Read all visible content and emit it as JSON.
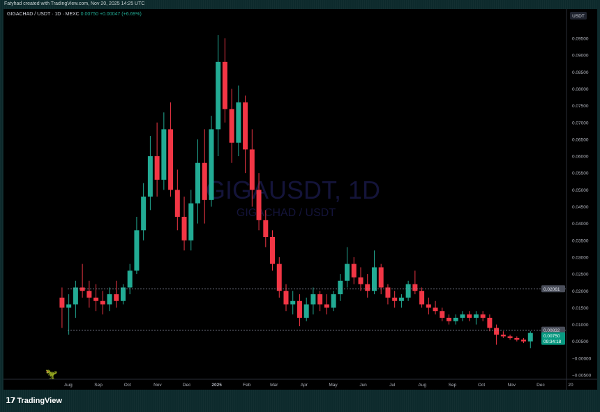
{
  "credit": "Fatyhad created with TradingView.com, Nov 20, 2025 14:25 UTC",
  "legend": {
    "symbol": "GIGACHAD / USDT · 1D · MEXC",
    "price": "0.00750",
    "change": "+0.00047 (+6.69%)"
  },
  "watermark": {
    "title": "GIGAUSDT, 1D",
    "subtitle": "GIGACHAD / USDT"
  },
  "currency_label": "USDT",
  "footer": {
    "brand": "TradingView"
  },
  "colors": {
    "up": "#22ab94",
    "down": "#f23645",
    "background": "#000000",
    "current_price": "#089981"
  },
  "chart_data": {
    "type": "candlestick",
    "interval": "1D",
    "ylim": [
      -0.005,
      0.1
    ],
    "y_ticks": [
      "0.09500",
      "0.09000",
      "0.08500",
      "0.08000",
      "0.07500",
      "0.07000",
      "0.06500",
      "0.06000",
      "0.05500",
      "0.05000",
      "0.04500",
      "0.04000",
      "0.03500",
      "0.03000",
      "0.02500",
      "0.02000",
      "0.01500",
      "0.01000",
      "0.00500",
      "−0.00000",
      "−0.00500"
    ],
    "y_tick_values": [
      0.095,
      0.09,
      0.085,
      0.08,
      0.075,
      0.07,
      0.065,
      0.06,
      0.055,
      0.05,
      0.045,
      0.04,
      0.035,
      0.03,
      0.025,
      0.02,
      0.015,
      0.01,
      0.005,
      0,
      -0.005
    ],
    "x_ticks": [
      {
        "label": "Aug",
        "date": "2024-08-01"
      },
      {
        "label": "Sep",
        "date": "2024-09-01"
      },
      {
        "label": "Oct",
        "date": "2024-10-01"
      },
      {
        "label": "Nov",
        "date": "2024-11-01"
      },
      {
        "label": "Dec",
        "date": "2024-12-01"
      },
      {
        "label": "2025",
        "date": "2025-01-01"
      },
      {
        "label": "Feb",
        "date": "2025-02-01"
      },
      {
        "label": "Mar",
        "date": "2025-03-01"
      },
      {
        "label": "Apr",
        "date": "2025-04-01"
      },
      {
        "label": "May",
        "date": "2025-05-01"
      },
      {
        "label": "Jun",
        "date": "2025-06-01"
      },
      {
        "label": "Jul",
        "date": "2025-07-01"
      },
      {
        "label": "Aug",
        "date": "2025-08-01"
      },
      {
        "label": "Sep",
        "date": "2025-09-01"
      },
      {
        "label": "Oct",
        "date": "2025-10-01"
      },
      {
        "label": "Nov",
        "date": "2025-11-01"
      },
      {
        "label": "Dec",
        "date": "2025-12-01"
      },
      {
        "label": "20",
        "date": "2026-01-01"
      }
    ],
    "horizontal_lines": [
      {
        "value": 0.02061,
        "label": "0.02061"
      },
      {
        "value": 0.00832,
        "label": "0.00832"
      }
    ],
    "current_price": {
      "value": 0.0075,
      "label": "0.00750",
      "countdown": "09:34:18"
    },
    "ohlc_columns": [
      "date",
      "open",
      "high",
      "low",
      "close"
    ],
    "ohlc": [
      [
        "2024-07-22",
        0.018,
        0.021,
        0.009,
        0.015
      ],
      [
        "2024-07-29",
        0.015,
        0.019,
        0.007,
        0.016
      ],
      [
        "2024-08-05",
        0.016,
        0.023,
        0.012,
        0.021
      ],
      [
        "2024-08-12",
        0.021,
        0.028,
        0.018,
        0.02
      ],
      [
        "2024-08-19",
        0.02,
        0.023,
        0.015,
        0.018
      ],
      [
        "2024-08-26",
        0.018,
        0.022,
        0.014,
        0.017
      ],
      [
        "2024-09-02",
        0.017,
        0.02,
        0.013,
        0.016
      ],
      [
        "2024-09-09",
        0.016,
        0.021,
        0.014,
        0.019
      ],
      [
        "2024-09-16",
        0.019,
        0.023,
        0.015,
        0.017
      ],
      [
        "2024-09-23",
        0.017,
        0.022,
        0.016,
        0.021
      ],
      [
        "2024-09-30",
        0.021,
        0.028,
        0.019,
        0.026
      ],
      [
        "2024-10-07",
        0.026,
        0.042,
        0.025,
        0.038
      ],
      [
        "2024-10-14",
        0.038,
        0.052,
        0.035,
        0.048
      ],
      [
        "2024-10-21",
        0.048,
        0.066,
        0.044,
        0.06
      ],
      [
        "2024-10-28",
        0.06,
        0.07,
        0.048,
        0.053
      ],
      [
        "2024-11-04",
        0.053,
        0.073,
        0.05,
        0.068
      ],
      [
        "2024-11-11",
        0.068,
        0.076,
        0.048,
        0.05
      ],
      [
        "2024-11-18",
        0.05,
        0.056,
        0.038,
        0.042
      ],
      [
        "2024-11-25",
        0.042,
        0.048,
        0.032,
        0.035
      ],
      [
        "2024-12-02",
        0.035,
        0.05,
        0.032,
        0.046
      ],
      [
        "2024-12-09",
        0.046,
        0.065,
        0.04,
        0.058
      ],
      [
        "2024-12-16",
        0.058,
        0.068,
        0.04,
        0.047
      ],
      [
        "2024-12-23",
        0.047,
        0.072,
        0.045,
        0.068
      ],
      [
        "2024-12-30",
        0.068,
        0.096,
        0.06,
        0.088
      ],
      [
        "2025-01-06",
        0.088,
        0.095,
        0.07,
        0.074
      ],
      [
        "2025-01-13",
        0.074,
        0.08,
        0.058,
        0.064
      ],
      [
        "2025-01-20",
        0.064,
        0.081,
        0.06,
        0.076
      ],
      [
        "2025-01-27",
        0.076,
        0.078,
        0.055,
        0.062
      ],
      [
        "2025-02-03",
        0.062,
        0.068,
        0.045,
        0.05
      ],
      [
        "2025-02-10",
        0.05,
        0.055,
        0.038,
        0.041
      ],
      [
        "2025-02-17",
        0.041,
        0.044,
        0.033,
        0.036
      ],
      [
        "2025-02-24",
        0.036,
        0.038,
        0.026,
        0.028
      ],
      [
        "2025-03-03",
        0.028,
        0.03,
        0.018,
        0.02
      ],
      [
        "2025-03-10",
        0.02,
        0.022,
        0.014,
        0.016
      ],
      [
        "2025-03-17",
        0.016,
        0.02,
        0.013,
        0.017
      ],
      [
        "2025-03-24",
        0.017,
        0.019,
        0.0095,
        0.012
      ],
      [
        "2025-03-31",
        0.012,
        0.018,
        0.011,
        0.016
      ],
      [
        "2025-04-07",
        0.016,
        0.021,
        0.013,
        0.019
      ],
      [
        "2025-04-14",
        0.019,
        0.02,
        0.014,
        0.016
      ],
      [
        "2025-04-21",
        0.016,
        0.019,
        0.013,
        0.015
      ],
      [
        "2025-04-28",
        0.015,
        0.02,
        0.014,
        0.019
      ],
      [
        "2025-05-05",
        0.019,
        0.025,
        0.017,
        0.023
      ],
      [
        "2025-05-12",
        0.023,
        0.033,
        0.021,
        0.028
      ],
      [
        "2025-05-19",
        0.028,
        0.03,
        0.022,
        0.024
      ],
      [
        "2025-05-26",
        0.024,
        0.027,
        0.02,
        0.022
      ],
      [
        "2025-06-02",
        0.022,
        0.025,
        0.018,
        0.02
      ],
      [
        "2025-06-09",
        0.02,
        0.032,
        0.019,
        0.027
      ],
      [
        "2025-06-16",
        0.027,
        0.028,
        0.019,
        0.021
      ],
      [
        "2025-06-23",
        0.021,
        0.022,
        0.016,
        0.018
      ],
      [
        "2025-06-30",
        0.018,
        0.02,
        0.015,
        0.017
      ],
      [
        "2025-07-07",
        0.017,
        0.019,
        0.015,
        0.018
      ],
      [
        "2025-07-14",
        0.018,
        0.023,
        0.017,
        0.022
      ],
      [
        "2025-07-21",
        0.022,
        0.026,
        0.019,
        0.02
      ],
      [
        "2025-07-28",
        0.02,
        0.021,
        0.015,
        0.016
      ],
      [
        "2025-08-04",
        0.016,
        0.018,
        0.013,
        0.015
      ],
      [
        "2025-08-11",
        0.015,
        0.017,
        0.013,
        0.014
      ],
      [
        "2025-08-18",
        0.014,
        0.015,
        0.011,
        0.012
      ],
      [
        "2025-08-25",
        0.012,
        0.013,
        0.01,
        0.011
      ],
      [
        "2025-09-01",
        0.011,
        0.013,
        0.01,
        0.012
      ],
      [
        "2025-09-08",
        0.012,
        0.014,
        0.011,
        0.013
      ],
      [
        "2025-09-15",
        0.013,
        0.014,
        0.011,
        0.012
      ],
      [
        "2025-09-22",
        0.012,
        0.014,
        0.01,
        0.013
      ],
      [
        "2025-09-29",
        0.013,
        0.014,
        0.011,
        0.012
      ],
      [
        "2025-10-06",
        0.012,
        0.013,
        0.008,
        0.009
      ],
      [
        "2025-10-13",
        0.009,
        0.01,
        0.004,
        0.007
      ],
      [
        "2025-10-20",
        0.007,
        0.008,
        0.006,
        0.0065
      ],
      [
        "2025-10-27",
        0.0065,
        0.007,
        0.0055,
        0.006
      ],
      [
        "2025-11-03",
        0.006,
        0.0065,
        0.005,
        0.0055
      ],
      [
        "2025-11-10",
        0.0055,
        0.006,
        0.0045,
        0.005
      ],
      [
        "2025-11-17",
        0.005,
        0.008,
        0.003,
        0.0075
      ]
    ]
  }
}
